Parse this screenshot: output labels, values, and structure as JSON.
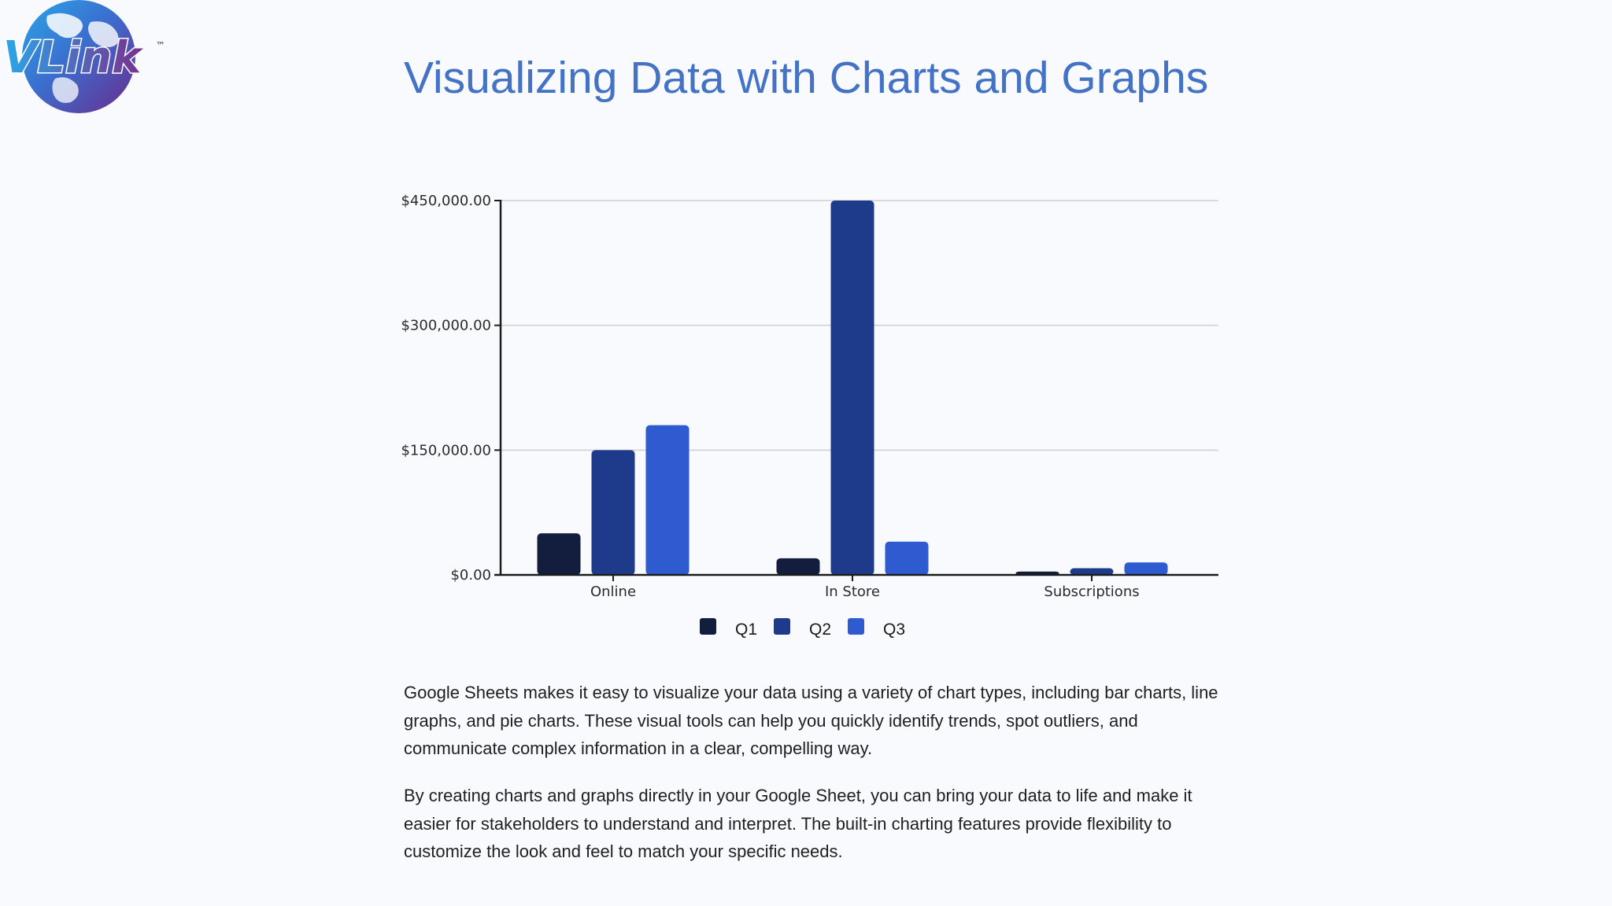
{
  "logo": {
    "text": "VLink",
    "tm": "™"
  },
  "title": "Visualizing Data with Charts and Graphs",
  "chart_data": {
    "type": "bar",
    "title": "",
    "xlabel": "",
    "ylabel": "",
    "categories": [
      "Online",
      "In Store",
      "Subscriptions"
    ],
    "series": [
      {
        "name": "Q1",
        "values": [
          50000,
          20000,
          4000
        ],
        "color": "#131d3e"
      },
      {
        "name": "Q2",
        "values": [
          150000,
          450000,
          8000
        ],
        "color": "#1e3a8a"
      },
      {
        "name": "Q3",
        "values": [
          180000,
          40000,
          15000
        ],
        "color": "#2f5bd1"
      }
    ],
    "ylim": [
      0,
      450000
    ],
    "yticks": [
      0,
      150000,
      300000,
      450000
    ],
    "ytick_labels": [
      "$0.00",
      "$150,000.00",
      "$300,000.00",
      "$450,000.00"
    ],
    "grid": true,
    "legend_position": "bottom"
  },
  "paragraphs": [
    "Google Sheets makes it easy to visualize your data using a variety of chart types, including bar charts, line graphs, and pie charts. These visual tools can help you quickly identify trends, spot outliers, and communicate complex information in a clear, compelling way.",
    "By creating charts and graphs directly in your Google Sheet, you can bring your data to life and make it easier for stakeholders to understand and interpret. The built-in charting features provide flexibility to customize the look and feel to match your specific needs."
  ]
}
